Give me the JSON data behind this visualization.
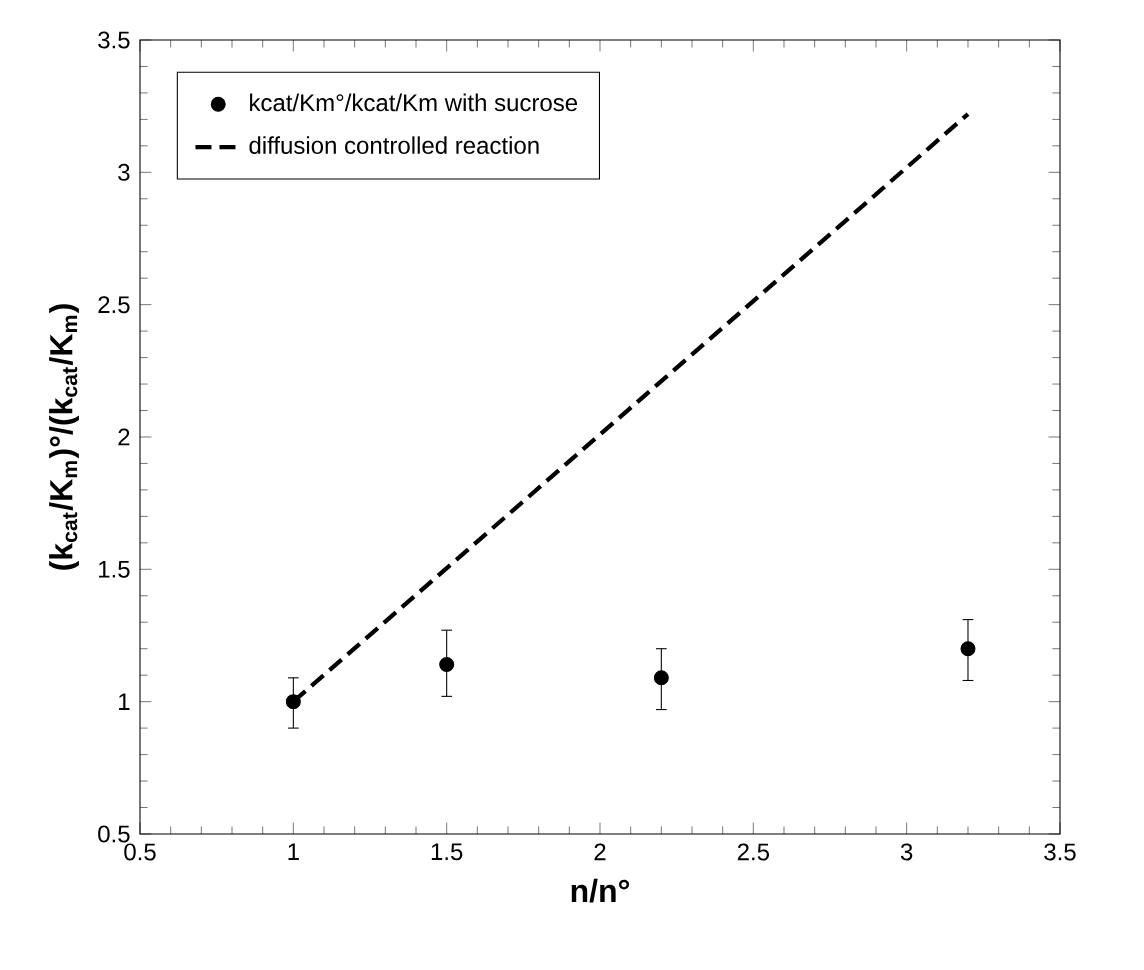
{
  "chart_data": {
    "type": "scatter",
    "xlabel": "n/n°",
    "ylabel": "(k$_{cat}$/K$_{m}$)°/(k$_{cat}$/K$_{m}$)",
    "xlim": [
      0.5,
      3.5
    ],
    "ylim": [
      0.5,
      3.5
    ],
    "xticks": [
      0.5,
      1,
      1.5,
      2,
      2.5,
      3,
      3.5
    ],
    "yticks": [
      0.5,
      1,
      1.5,
      2,
      2.5,
      3,
      3.5
    ],
    "grid": false,
    "legend": "top left",
    "series": [
      {
        "name": "kcat/Km°/kcat/Km with sucrose",
        "color": "#000000",
        "marker": "circle",
        "x": [
          1,
          1.5,
          2.2,
          3.2
        ],
        "values": [
          1,
          1.14,
          1.09,
          1.2
        ],
        "errors": [
          [
            0.9,
            1.09
          ],
          [
            1.02,
            1.27
          ],
          [
            0.97,
            1.2
          ],
          [
            1.08,
            1.31
          ]
        ]
      },
      {
        "name": "diffusion controlled reaction",
        "type": "line",
        "color": "#000000",
        "line_style": "dashed",
        "marker": "none",
        "x": [
          1,
          3.2
        ],
        "values": [
          1,
          3.22
        ]
      }
    ]
  }
}
